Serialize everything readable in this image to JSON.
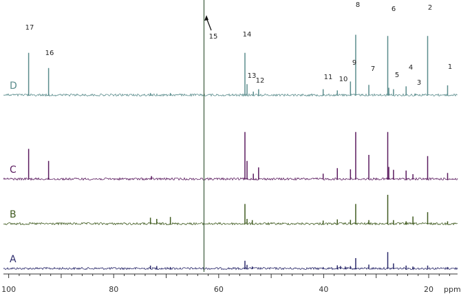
{
  "chart_data": {
    "type": "line",
    "title": "",
    "xlabel": "ppm",
    "ylabel": "",
    "xlim": [
      101,
      14.5
    ],
    "x_reversed": true,
    "x_ticks": [
      100,
      80,
      60,
      40,
      20
    ],
    "x_tick_labels": [
      "100",
      "80",
      "60",
      "40",
      "20"
    ],
    "x_unit_label": "ppm",
    "solvent_line": {
      "x": 62.8,
      "color": "#3a5a3a"
    },
    "series": [
      {
        "name": "A",
        "color": "#2b2a6b",
        "peaks": [
          {
            "x": 73.0,
            "h": 0.12
          },
          {
            "x": 71.8,
            "h": 0.1
          },
          {
            "x": 69.2,
            "h": 0.06
          },
          {
            "x": 55.0,
            "h": 0.32
          },
          {
            "x": 54.6,
            "h": 0.15
          },
          {
            "x": 53.6,
            "h": 0.08
          },
          {
            "x": 40.1,
            "h": 0.06
          },
          {
            "x": 37.4,
            "h": 0.13
          },
          {
            "x": 36.8,
            "h": 0.1
          },
          {
            "x": 35.9,
            "h": 0.08
          },
          {
            "x": 34.9,
            "h": 0.1
          },
          {
            "x": 33.9,
            "h": 0.43
          },
          {
            "x": 31.4,
            "h": 0.16
          },
          {
            "x": 27.8,
            "h": 0.68
          },
          {
            "x": 26.7,
            "h": 0.21
          },
          {
            "x": 24.3,
            "h": 0.12
          },
          {
            "x": 23.0,
            "h": 0.08
          },
          {
            "x": 20.2,
            "h": 0.12
          },
          {
            "x": 16.4,
            "h": 0.06
          }
        ]
      },
      {
        "name": "B",
        "color": "#3f5a1f",
        "peaks": [
          {
            "x": 73.0,
            "h": 0.25
          },
          {
            "x": 71.8,
            "h": 0.2
          },
          {
            "x": 69.2,
            "h": 0.28
          },
          {
            "x": 55.0,
            "h": 0.82
          },
          {
            "x": 54.6,
            "h": 0.2
          },
          {
            "x": 53.6,
            "h": 0.15
          },
          {
            "x": 40.1,
            "h": 0.13
          },
          {
            "x": 37.4,
            "h": 0.18
          },
          {
            "x": 34.9,
            "h": 0.16
          },
          {
            "x": 33.9,
            "h": 0.82
          },
          {
            "x": 31.4,
            "h": 0.15
          },
          {
            "x": 27.8,
            "h": 1.2
          },
          {
            "x": 26.7,
            "h": 0.15
          },
          {
            "x": 24.3,
            "h": 0.1
          },
          {
            "x": 23.0,
            "h": 0.3
          },
          {
            "x": 20.2,
            "h": 0.48
          },
          {
            "x": 16.4,
            "h": 0.1
          }
        ]
      },
      {
        "name": "C",
        "color": "#5a1a5e",
        "peaks": [
          {
            "x": 96.2,
            "h": 1.25
          },
          {
            "x": 92.4,
            "h": 0.75
          },
          {
            "x": 72.8,
            "h": 0.12
          },
          {
            "x": 55.0,
            "h": 1.95
          },
          {
            "x": 54.6,
            "h": 0.75
          },
          {
            "x": 53.4,
            "h": 0.22
          },
          {
            "x": 52.4,
            "h": 0.48
          },
          {
            "x": 40.1,
            "h": 0.22
          },
          {
            "x": 37.4,
            "h": 0.45
          },
          {
            "x": 34.9,
            "h": 0.4
          },
          {
            "x": 33.9,
            "h": 1.95
          },
          {
            "x": 31.4,
            "h": 1.0
          },
          {
            "x": 27.8,
            "h": 1.95
          },
          {
            "x": 27.6,
            "h": 0.5
          },
          {
            "x": 26.7,
            "h": 0.38
          },
          {
            "x": 24.3,
            "h": 0.35
          },
          {
            "x": 23.0,
            "h": 0.2
          },
          {
            "x": 20.2,
            "h": 0.95
          },
          {
            "x": 16.4,
            "h": 0.25
          }
        ]
      },
      {
        "name": "D",
        "color": "#5a8c8c",
        "peaks": [
          {
            "x": 96.2,
            "h": 1.75
          },
          {
            "x": 92.4,
            "h": 1.12
          },
          {
            "x": 73.0,
            "h": 0.08
          },
          {
            "x": 69.2,
            "h": 0.08
          },
          {
            "x": 55.0,
            "h": 1.75
          },
          {
            "x": 54.6,
            "h": 0.45
          },
          {
            "x": 53.4,
            "h": 0.14
          },
          {
            "x": 52.4,
            "h": 0.24
          },
          {
            "x": 40.1,
            "h": 0.24
          },
          {
            "x": 37.4,
            "h": 0.19
          },
          {
            "x": 34.9,
            "h": 0.56
          },
          {
            "x": 33.9,
            "h": 2.5
          },
          {
            "x": 31.4,
            "h": 0.42
          },
          {
            "x": 27.8,
            "h": 2.45
          },
          {
            "x": 27.6,
            "h": 0.3
          },
          {
            "x": 26.7,
            "h": 0.24
          },
          {
            "x": 24.3,
            "h": 0.36
          },
          {
            "x": 22.6,
            "h": 0.06
          },
          {
            "x": 20.2,
            "h": 2.45
          },
          {
            "x": 16.4,
            "h": 0.4
          }
        ]
      }
    ],
    "peak_labels": [
      {
        "text": "1",
        "x": 16.4
      },
      {
        "text": "2",
        "x": 20.2
      },
      {
        "text": "3",
        "x": 22.6
      },
      {
        "text": "4",
        "x": 24.3
      },
      {
        "text": "5",
        "x": 26.7
      },
      {
        "text": "6",
        "x": 27.8
      },
      {
        "text": "7",
        "x": 31.4
      },
      {
        "text": "8",
        "x": 33.9
      },
      {
        "text": "9",
        "x": 34.9
      },
      {
        "text": "10",
        "x": 37.4
      },
      {
        "text": "11",
        "x": 40.1
      },
      {
        "text": "12",
        "x": 52.4
      },
      {
        "text": "13",
        "x": 53.8
      },
      {
        "text": "14",
        "x": 55.0
      },
      {
        "text": "15",
        "x": 62.8
      },
      {
        "text": "16",
        "x": 92.4
      },
      {
        "text": "17",
        "x": 96.2
      }
    ]
  }
}
